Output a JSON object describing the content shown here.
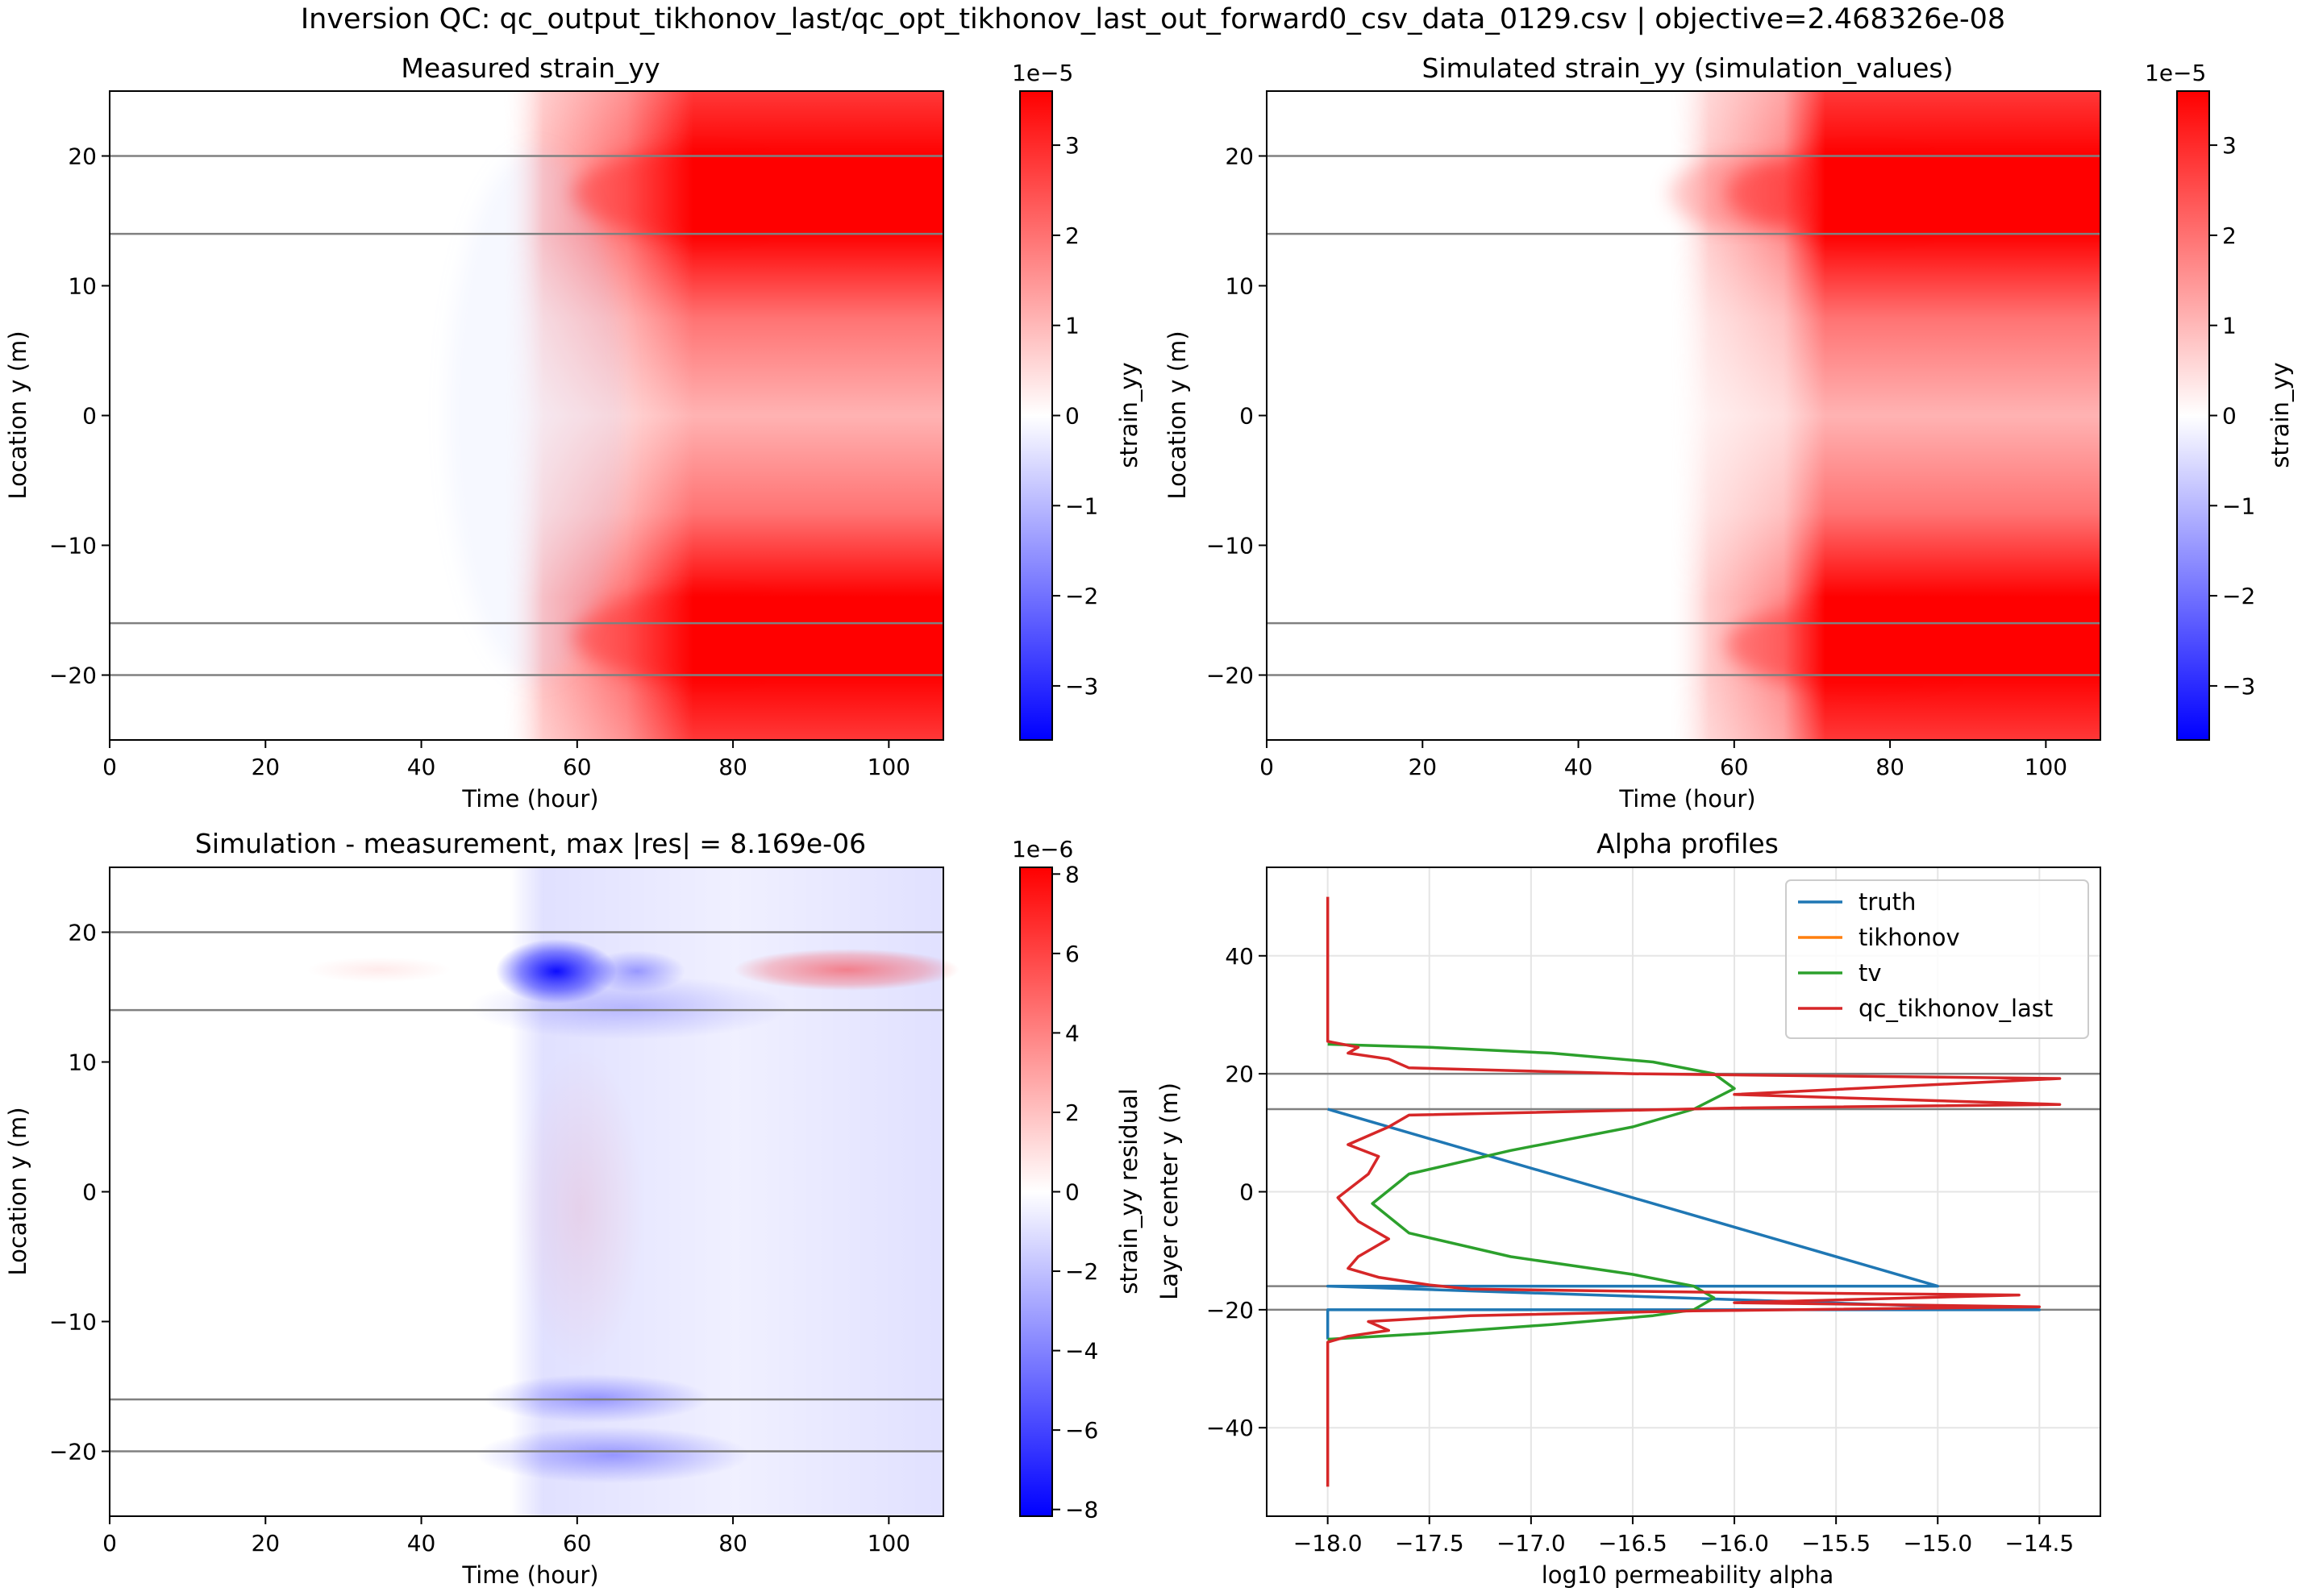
{
  "figure": {
    "title": "Inversion QC: qc_output_tikhonov_last/qc_opt_tikhonov_last_out_forward0_csv_data_0129.csv | objective=2.468326e-08"
  },
  "colors": {
    "red": "#ff0000",
    "blue": "#0000ff",
    "truth": "#1f77b4",
    "tikhonov": "#ff7f0e",
    "tv": "#2ca02c",
    "qc_tikhonov_last": "#d62728",
    "layer_line": "#808080",
    "grid": "#e5e5e5"
  },
  "chart_data": [
    {
      "type": "heatmap",
      "title": "Measured strain_yy",
      "xlabel": "Time (hour)",
      "ylabel": "Location y (m)",
      "xlim": [
        0,
        107
      ],
      "ylim": [
        -25,
        25
      ],
      "xticks": [
        "0",
        "20",
        "40",
        "60",
        "80",
        "100"
      ],
      "yticks": [
        "20",
        "10",
        "0",
        "−10",
        "−20"
      ],
      "colorbar": {
        "label": "strain_yy",
        "offset": "1e−5",
        "range": [
          -3.6,
          3.6
        ],
        "ticks": [
          "3",
          "2",
          "1",
          "0",
          "−1",
          "−2",
          "−3"
        ]
      },
      "layer_boundaries_y": [
        20,
        14,
        -16,
        -20
      ],
      "colormap": "bwr"
    },
    {
      "type": "heatmap",
      "title": "Simulated strain_yy (simulation_values)",
      "xlabel": "Time (hour)",
      "ylabel": "Location y (m)",
      "xlim": [
        0,
        107
      ],
      "ylim": [
        -25,
        25
      ],
      "xticks": [
        "0",
        "20",
        "40",
        "60",
        "80",
        "100"
      ],
      "yticks": [
        "20",
        "10",
        "0",
        "−10",
        "−20"
      ],
      "colorbar": {
        "label": "strain_yy",
        "offset": "1e−5",
        "range": [
          -3.6,
          3.6
        ],
        "ticks": [
          "3",
          "2",
          "1",
          "0",
          "−1",
          "−2",
          "−3"
        ]
      },
      "layer_boundaries_y": [
        20,
        14,
        -16,
        -20
      ],
      "colormap": "bwr"
    },
    {
      "type": "heatmap",
      "title": "Simulation - measurement, max |res| = 8.169e-06",
      "xlabel": "Time (hour)",
      "ylabel": "Location y (m)",
      "xlim": [
        0,
        107
      ],
      "ylim": [
        -25,
        25
      ],
      "xticks": [
        "0",
        "20",
        "40",
        "60",
        "80",
        "100"
      ],
      "yticks": [
        "20",
        "10",
        "0",
        "−10",
        "−20"
      ],
      "colorbar": {
        "label": "strain_yy residual",
        "offset": "1e−6",
        "range": [
          -8.169,
          8.169
        ],
        "ticks": [
          "8",
          "6",
          "4",
          "2",
          "0",
          "−2",
          "−4",
          "−6",
          "−8"
        ]
      },
      "layer_boundaries_y": [
        20,
        14,
        -16,
        -20
      ],
      "colormap": "bwr"
    },
    {
      "type": "line",
      "title": "Alpha profiles",
      "xlabel": "log10 permeability alpha",
      "ylabel": "Layer center y (m)",
      "xlim": [
        -18.3,
        -14.2
      ],
      "ylim": [
        -55,
        55
      ],
      "xticks": [
        "−18.0",
        "−17.5",
        "−17.0",
        "−16.5",
        "−16.0",
        "−15.5",
        "−15.0",
        "−14.5"
      ],
      "xtick_values": [
        -18.0,
        -17.5,
        -17.0,
        -16.5,
        -16.0,
        -15.5,
        -15.0,
        -14.5
      ],
      "yticks": [
        "40",
        "20",
        "0",
        "−20",
        "−40"
      ],
      "ytick_values": [
        40,
        20,
        0,
        -20,
        -40
      ],
      "grid": true,
      "legend": "top-right",
      "layer_boundaries_y": [
        20,
        14,
        -16,
        -20
      ],
      "series": [
        {
          "name": "truth",
          "x": [
            -18.0,
            -18.0,
            -18.0,
            -14.5,
            -14.5,
            -18.0,
            -18.0,
            -15.0,
            -15.0,
            -18.0,
            -18.0
          ],
          "y": [
            -25,
            -20,
            -20,
            -20,
            -20,
            -16,
            -16,
            -16,
            -16,
            14,
            14
          ]
        },
        {
          "name": "tikhonov",
          "x": [],
          "y": []
        },
        {
          "name": "tv",
          "x": [
            -18.0,
            -17.5,
            -16.9,
            -16.4,
            -16.2,
            -16.1,
            -16.2,
            -16.5,
            -17.1,
            -17.6,
            -17.78,
            -17.6,
            -17.1,
            -16.5,
            -16.2,
            -16.0,
            -16.1,
            -16.4,
            -16.9,
            -17.5,
            -18.0
          ],
          "y": [
            -25,
            -24,
            -22.5,
            -21,
            -20,
            -18,
            -16,
            -14,
            -11,
            -7,
            -2,
            3,
            7,
            11,
            14,
            17.5,
            20,
            22,
            23.5,
            24.5,
            25
          ]
        },
        {
          "name": "qc_tikhonov_last",
          "x": [
            -18.0,
            -18.0,
            -18.0,
            -17.9,
            -17.7,
            -17.8,
            -17.3,
            -16.2,
            -14.5,
            -16.0,
            -14.6,
            -16.2,
            -17.3,
            -17.5,
            -17.75,
            -17.9,
            -17.85,
            -17.7,
            -17.85,
            -17.95,
            -17.8,
            -17.75,
            -17.9,
            -17.7,
            -17.6,
            -16.0,
            -14.4,
            -16.0,
            -14.4,
            -16.5,
            -17.6,
            -17.7,
            -17.9,
            -17.85,
            -18.0,
            -18.0,
            -18.0
          ],
          "y": [
            -50,
            -30,
            -25.5,
            -24.5,
            -23.5,
            -22,
            -21,
            -20.2,
            -19.5,
            -18.8,
            -17.5,
            -17,
            -16.5,
            -15.8,
            -14.5,
            -13,
            -11,
            -8,
            -5,
            -1,
            3,
            6,
            8,
            11,
            13,
            14.2,
            14.8,
            16.5,
            19.2,
            20,
            21,
            22.5,
            23.5,
            24.5,
            25.5,
            30,
            50
          ]
        }
      ]
    }
  ]
}
